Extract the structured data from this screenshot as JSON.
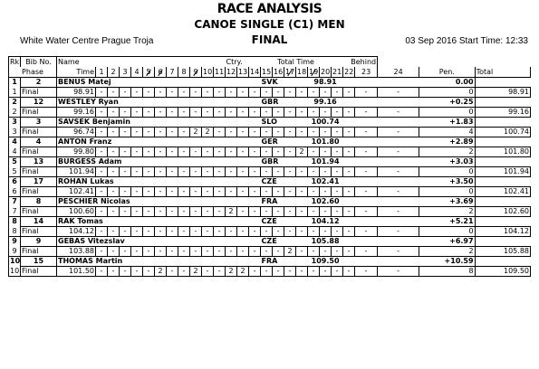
{
  "header": {
    "title": "RACE ANALYSIS",
    "event": "CANOE SINGLE (C1) MEN",
    "phase": "FINAL",
    "venue": "White Water Centre Prague Troja",
    "datetime": "03 Sep 2016 Start Time: 12:33"
  },
  "columns": {
    "rk": "Rk",
    "bib": "Bib No.",
    "name": "Name",
    "ctry": "Ctry.",
    "total_time": "Total Time",
    "behind": "Behind",
    "phase": "Phase",
    "time": "Time",
    "pen": "Pen.",
    "total": "Total",
    "gates": [
      "1",
      "2",
      "3",
      "4",
      "5",
      "6",
      "7",
      "8",
      "9",
      "10",
      "11",
      "12",
      "13",
      "14",
      "15",
      "16",
      "17",
      "18",
      "19",
      "20",
      "21",
      "22",
      "23",
      "24"
    ]
  },
  "athletes": [
    {
      "rk": "1",
      "bib": "2",
      "name": "BENUS Matej",
      "ctry": "SVK",
      "total_time": "98.91",
      "behind": "0.00",
      "phase": "Final",
      "time": "98.91",
      "gates": [
        "-",
        "-",
        "-",
        "-",
        "-",
        "-",
        "-",
        "-",
        "-",
        "-",
        "-",
        "-",
        "-",
        "-",
        "-",
        "-",
        "-",
        "-",
        "-",
        "-",
        "-",
        "-",
        "-",
        "-"
      ],
      "pen": "0",
      "total": "98.91"
    },
    {
      "rk": "2",
      "bib": "12",
      "name": "WESTLEY Ryan",
      "ctry": "GBR",
      "total_time": "99.16",
      "behind": "+0.25",
      "phase": "Final",
      "time": "99.16",
      "gates": [
        "-",
        "-",
        "-",
        "-",
        "-",
        "-",
        "-",
        "-",
        "-",
        "-",
        "-",
        "-",
        "-",
        "-",
        "-",
        "-",
        "-",
        "-",
        "-",
        "-",
        "-",
        "-",
        "-",
        "-"
      ],
      "pen": "0",
      "total": "99.16"
    },
    {
      "rk": "3",
      "bib": "3",
      "name": "SAVSEK Benjamin",
      "ctry": "SLO",
      "total_time": "100.74",
      "behind": "+1.83",
      "phase": "Final",
      "time": "96.74",
      "gates": [
        "-",
        "-",
        "-",
        "-",
        "-",
        "-",
        "-",
        "-",
        "2",
        "2",
        "-",
        "-",
        "-",
        "-",
        "-",
        "-",
        "-",
        "-",
        "-",
        "-",
        "-",
        "-",
        "-",
        "-"
      ],
      "pen": "4",
      "total": "100.74"
    },
    {
      "rk": "4",
      "bib": "4",
      "name": "ANTON Franz",
      "ctry": "GER",
      "total_time": "101.80",
      "behind": "+2.89",
      "phase": "Final",
      "time": "99.80",
      "gates": [
        "-",
        "-",
        "-",
        "-",
        "-",
        "-",
        "-",
        "-",
        "-",
        "-",
        "-",
        "-",
        "-",
        "-",
        "-",
        "-",
        "-",
        "2",
        "-",
        "-",
        "-",
        "-",
        "-",
        "-"
      ],
      "pen": "2",
      "total": "101.80"
    },
    {
      "rk": "5",
      "bib": "13",
      "name": "BURGESS Adam",
      "ctry": "GBR",
      "total_time": "101.94",
      "behind": "+3.03",
      "phase": "Final",
      "time": "101.94",
      "gates": [
        "-",
        "-",
        "-",
        "-",
        "-",
        "-",
        "-",
        "-",
        "-",
        "-",
        "-",
        "-",
        "-",
        "-",
        "-",
        "-",
        "-",
        "-",
        "-",
        "-",
        "-",
        "-",
        "-",
        "-"
      ],
      "pen": "0",
      "total": "101.94"
    },
    {
      "rk": "6",
      "bib": "17",
      "name": "ROHAN Lukas",
      "ctry": "CZE",
      "total_time": "102.41",
      "behind": "+3.50",
      "phase": "Final",
      "time": "102.41",
      "gates": [
        "-",
        "-",
        "-",
        "-",
        "-",
        "-",
        "-",
        "-",
        "-",
        "-",
        "-",
        "-",
        "-",
        "-",
        "-",
        "-",
        "-",
        "-",
        "-",
        "-",
        "-",
        "-",
        "-",
        "-"
      ],
      "pen": "0",
      "total": "102.41"
    },
    {
      "rk": "7",
      "bib": "8",
      "name": "PESCHIER Nicolas",
      "ctry": "FRA",
      "total_time": "102.60",
      "behind": "+3.69",
      "phase": "Final",
      "time": "100.60",
      "gates": [
        "-",
        "-",
        "-",
        "-",
        "-",
        "-",
        "-",
        "-",
        "-",
        "-",
        "-",
        "2",
        "-",
        "-",
        "-",
        "-",
        "-",
        "-",
        "-",
        "-",
        "-",
        "-",
        "-",
        "-"
      ],
      "pen": "2",
      "total": "102.60"
    },
    {
      "rk": "8",
      "bib": "14",
      "name": "RAK Tomas",
      "ctry": "CZE",
      "total_time": "104.12",
      "behind": "+5.21",
      "phase": "Final",
      "time": "104.12",
      "gates": [
        "-",
        "-",
        "-",
        "-",
        "-",
        "-",
        "-",
        "-",
        "-",
        "-",
        "-",
        "-",
        "-",
        "-",
        "-",
        "-",
        "-",
        "-",
        "-",
        "-",
        "-",
        "-",
        "-",
        "-"
      ],
      "pen": "0",
      "total": "104.12"
    },
    {
      "rk": "9",
      "bib": "9",
      "name": "GEBAS Vitezslav",
      "ctry": "CZE",
      "total_time": "105.88",
      "behind": "+6.97",
      "phase": "Final",
      "time": "103.88",
      "gates": [
        "-",
        "-",
        "-",
        "-",
        "-",
        "-",
        "-",
        "-",
        "-",
        "-",
        "-",
        "-",
        "-",
        "-",
        "-",
        "-",
        "2",
        "-",
        "-",
        "-",
        "-",
        "-",
        "-",
        "-"
      ],
      "pen": "2",
      "total": "105.88"
    },
    {
      "rk": "10",
      "bib": "15",
      "name": "THOMAS Martin",
      "ctry": "FRA",
      "total_time": "109.50",
      "behind": "+10.59",
      "phase": "Final",
      "time": "101.50",
      "gates": [
        "-",
        "-",
        "-",
        "-",
        "-",
        "2",
        "-",
        "-",
        "2",
        "-",
        "-",
        "2",
        "2",
        "-",
        "-",
        "-",
        "-",
        "-",
        "-",
        "-",
        "-",
        "-",
        "-",
        "-"
      ],
      "pen": "8",
      "total": "109.50"
    }
  ]
}
